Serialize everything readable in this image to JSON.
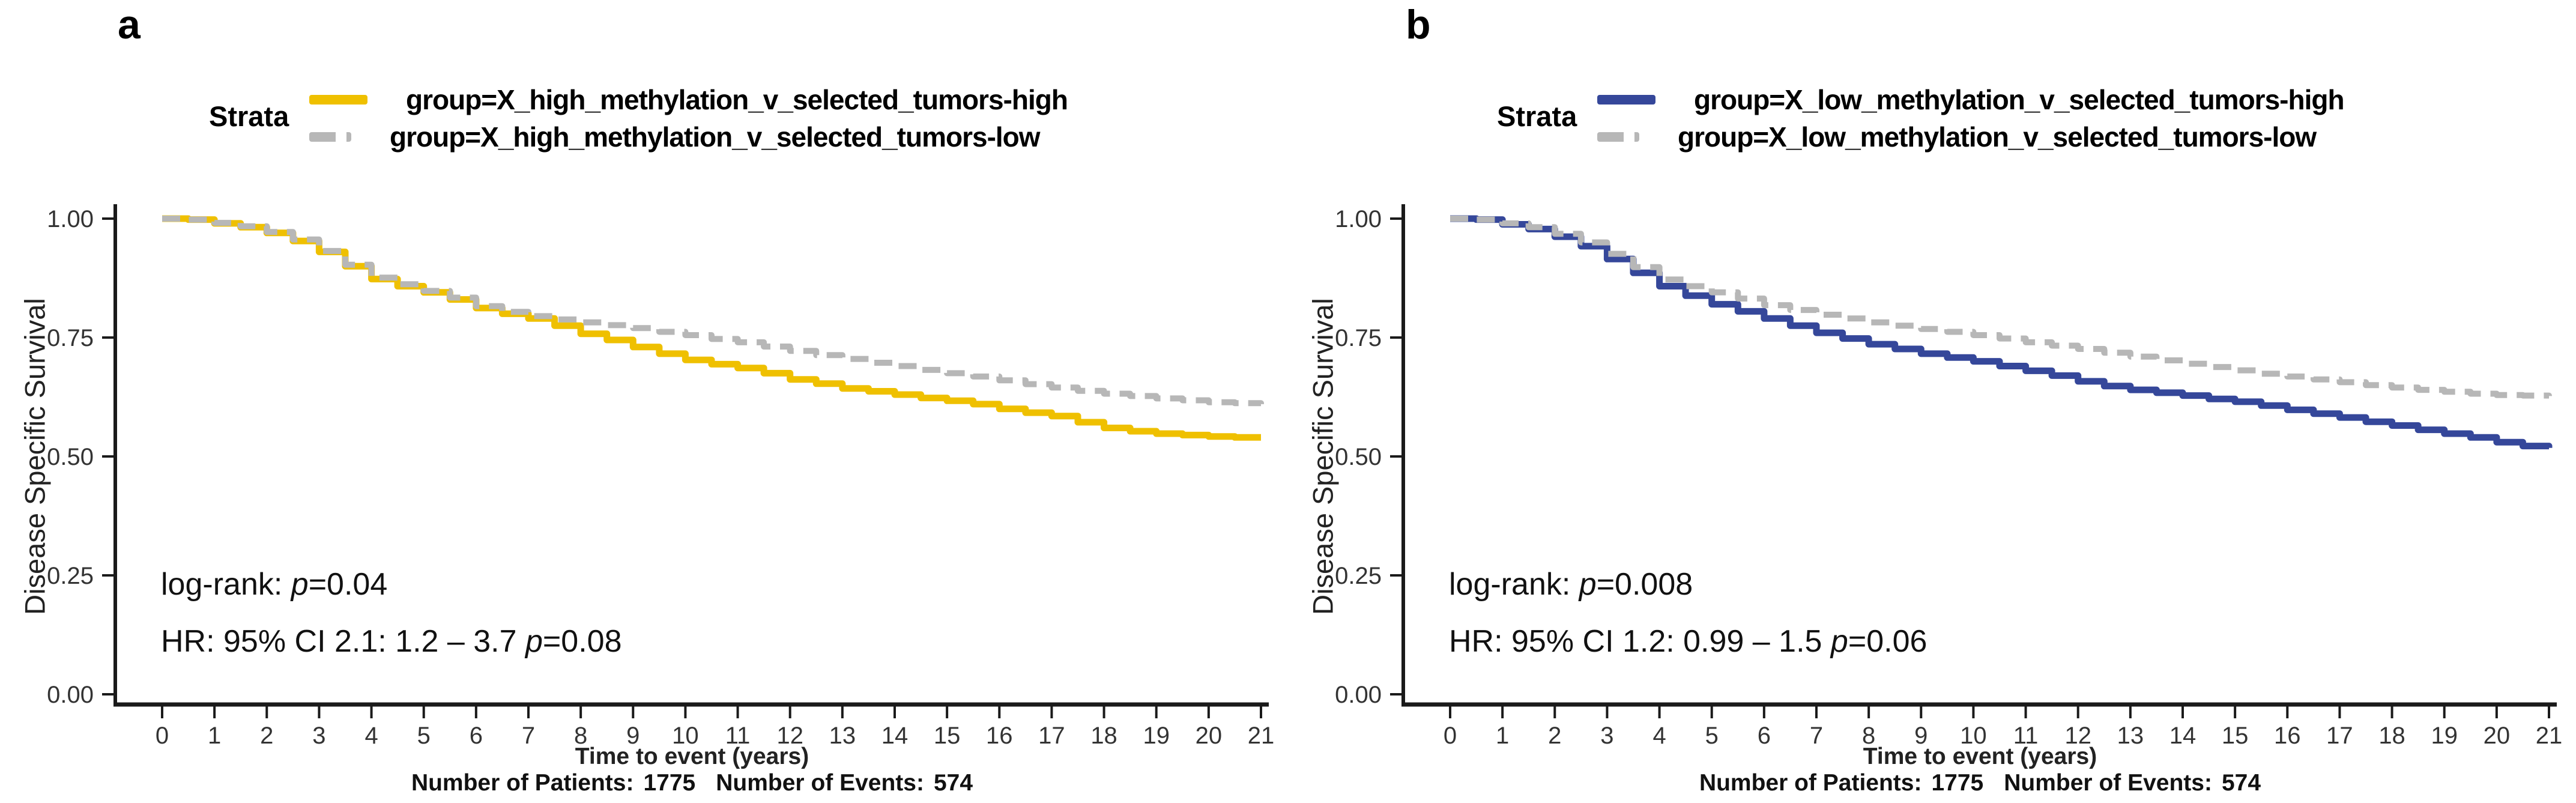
{
  "chart_data": [
    {
      "type": "line",
      "subtype": "kaplan-meier-step",
      "panel_label": "a",
      "legend_title": "Strata",
      "legend_position": "top",
      "ylabel": "Disease Specific Survival",
      "xlabel": "Time to event (years)",
      "xlim": [
        0,
        21
      ],
      "ylim": [
        0,
        1
      ],
      "grid": false,
      "x_ticks": [
        0,
        1,
        2,
        3,
        4,
        5,
        6,
        7,
        8,
        9,
        10,
        11,
        12,
        13,
        14,
        15,
        16,
        17,
        18,
        19,
        20,
        21
      ],
      "y_ticks": [
        {
          "value": 1.0,
          "label": "1.00"
        },
        {
          "value": 0.75,
          "label": "0.75"
        },
        {
          "value": 0.5,
          "label": "0.50"
        },
        {
          "value": 0.25,
          "label": "0.25"
        },
        {
          "value": 0.0,
          "label": "0.00"
        }
      ],
      "series": [
        {
          "name": "group=X_high_methylation_v_selected_tumors-high",
          "color": "#EFC000",
          "style": "solid",
          "points": [
            [
              0,
              1.0
            ],
            [
              0.5,
              0.998
            ],
            [
              1,
              0.99
            ],
            [
              1.5,
              0.982
            ],
            [
              2,
              0.97
            ],
            [
              2.5,
              0.953
            ],
            [
              3,
              0.93
            ],
            [
              3.5,
              0.9
            ],
            [
              4,
              0.873
            ],
            [
              4.5,
              0.858
            ],
            [
              5,
              0.845
            ],
            [
              5.5,
              0.83
            ],
            [
              6,
              0.812
            ],
            [
              6.5,
              0.8
            ],
            [
              7,
              0.79
            ],
            [
              7.5,
              0.775
            ],
            [
              8,
              0.758
            ],
            [
              8.5,
              0.745
            ],
            [
              9,
              0.73
            ],
            [
              9.5,
              0.716
            ],
            [
              10,
              0.703
            ],
            [
              10.5,
              0.694
            ],
            [
              11,
              0.686
            ],
            [
              11.5,
              0.675
            ],
            [
              12,
              0.662
            ],
            [
              12.5,
              0.653
            ],
            [
              13,
              0.643
            ],
            [
              13.5,
              0.637
            ],
            [
              14,
              0.63
            ],
            [
              14.5,
              0.623
            ],
            [
              15,
              0.617
            ],
            [
              15.5,
              0.61
            ],
            [
              16,
              0.6
            ],
            [
              16.5,
              0.592
            ],
            [
              17,
              0.585
            ],
            [
              17.5,
              0.572
            ],
            [
              18,
              0.56
            ],
            [
              18.5,
              0.553
            ],
            [
              19,
              0.548
            ],
            [
              19.5,
              0.545
            ],
            [
              20,
              0.542
            ],
            [
              20.5,
              0.54
            ],
            [
              21,
              0.54
            ]
          ]
        },
        {
          "name": "group=X_high_methylation_v_selected_tumors-low",
          "color": "#B7B7B7",
          "style": "dashed",
          "points": [
            [
              0,
              1.0
            ],
            [
              0.5,
              0.998
            ],
            [
              1,
              0.991
            ],
            [
              1.5,
              0.984
            ],
            [
              2,
              0.972
            ],
            [
              2.5,
              0.956
            ],
            [
              3,
              0.932
            ],
            [
              3.5,
              0.903
            ],
            [
              4,
              0.876
            ],
            [
              4.5,
              0.862
            ],
            [
              5,
              0.848
            ],
            [
              5.5,
              0.834
            ],
            [
              6,
              0.816
            ],
            [
              6.5,
              0.804
            ],
            [
              7,
              0.795
            ],
            [
              7.5,
              0.788
            ],
            [
              8,
              0.782
            ],
            [
              8.5,
              0.776
            ],
            [
              9,
              0.77
            ],
            [
              9.5,
              0.762
            ],
            [
              10,
              0.755
            ],
            [
              10.5,
              0.747
            ],
            [
              11,
              0.74
            ],
            [
              11.5,
              0.731
            ],
            [
              12,
              0.722
            ],
            [
              12.5,
              0.713
            ],
            [
              13,
              0.705
            ],
            [
              13.5,
              0.697
            ],
            [
              14,
              0.69
            ],
            [
              14.5,
              0.682
            ],
            [
              15,
              0.675
            ],
            [
              15.5,
              0.668
            ],
            [
              16,
              0.66
            ],
            [
              16.5,
              0.652
            ],
            [
              17,
              0.645
            ],
            [
              17.5,
              0.638
            ],
            [
              18,
              0.632
            ],
            [
              18.5,
              0.627
            ],
            [
              19,
              0.622
            ],
            [
              19.5,
              0.618
            ],
            [
              20,
              0.614
            ],
            [
              20.5,
              0.612
            ],
            [
              21,
              0.61
            ]
          ]
        }
      ],
      "annotations": {
        "logrank_prefix": "log-rank: ",
        "logrank_p": "p",
        "logrank_value": "=0.04",
        "hr_prefix": "HR: 95% CI 2.1: 1.2 – 3.7 ",
        "hr_p": "p",
        "hr_value": "=0.08"
      },
      "footer": {
        "patients_label": "Number of Patients:",
        "patients_value": "1775",
        "events_label": "Number of Events:",
        "events_value": "574"
      }
    },
    {
      "type": "line",
      "subtype": "kaplan-meier-step",
      "panel_label": "b",
      "legend_title": "Strata",
      "legend_position": "top",
      "ylabel": "Disease Specific Survival",
      "xlabel": "Time to event (years)",
      "xlim": [
        0,
        21
      ],
      "ylim": [
        0,
        1
      ],
      "grid": false,
      "x_ticks": [
        0,
        1,
        2,
        3,
        4,
        5,
        6,
        7,
        8,
        9,
        10,
        11,
        12,
        13,
        14,
        15,
        16,
        17,
        18,
        19,
        20,
        21
      ],
      "y_ticks": [
        {
          "value": 1.0,
          "label": "1.00"
        },
        {
          "value": 0.75,
          "label": "0.75"
        },
        {
          "value": 0.5,
          "label": "0.50"
        },
        {
          "value": 0.25,
          "label": "0.25"
        },
        {
          "value": 0.0,
          "label": "0.00"
        }
      ],
      "series": [
        {
          "name": "group=X_low_methylation_v_selected_tumors-high",
          "color": "#35479A",
          "style": "solid",
          "points": [
            [
              0,
              1.0
            ],
            [
              0.5,
              0.998
            ],
            [
              1,
              0.988
            ],
            [
              1.5,
              0.978
            ],
            [
              2,
              0.962
            ],
            [
              2.5,
              0.942
            ],
            [
              3,
              0.915
            ],
            [
              3.5,
              0.886
            ],
            [
              4,
              0.858
            ],
            [
              4.5,
              0.838
            ],
            [
              5,
              0.82
            ],
            [
              5.5,
              0.805
            ],
            [
              6,
              0.79
            ],
            [
              6.5,
              0.775
            ],
            [
              7,
              0.76
            ],
            [
              7.5,
              0.748
            ],
            [
              8,
              0.736
            ],
            [
              8.5,
              0.726
            ],
            [
              9,
              0.716
            ],
            [
              9.5,
              0.708
            ],
            [
              10,
              0.7
            ],
            [
              10.5,
              0.69
            ],
            [
              11,
              0.68
            ],
            [
              11.5,
              0.67
            ],
            [
              12,
              0.658
            ],
            [
              12.5,
              0.648
            ],
            [
              13,
              0.64
            ],
            [
              13.5,
              0.634
            ],
            [
              14,
              0.628
            ],
            [
              14.5,
              0.621
            ],
            [
              15,
              0.615
            ],
            [
              15.5,
              0.607
            ],
            [
              16,
              0.598
            ],
            [
              16.5,
              0.59
            ],
            [
              17,
              0.582
            ],
            [
              17.5,
              0.573
            ],
            [
              18,
              0.565
            ],
            [
              18.5,
              0.556
            ],
            [
              19,
              0.548
            ],
            [
              19.5,
              0.54
            ],
            [
              20,
              0.53
            ],
            [
              20.5,
              0.522
            ],
            [
              21,
              0.518
            ]
          ]
        },
        {
          "name": "group=X_low_methylation_v_selected_tumors-low",
          "color": "#B7B7B7",
          "style": "dashed",
          "points": [
            [
              0,
              1.0
            ],
            [
              0.5,
              0.998
            ],
            [
              1,
              0.99
            ],
            [
              1.5,
              0.982
            ],
            [
              2,
              0.968
            ],
            [
              2.5,
              0.95
            ],
            [
              3,
              0.926
            ],
            [
              3.5,
              0.898
            ],
            [
              4,
              0.872
            ],
            [
              4.5,
              0.858
            ],
            [
              5,
              0.845
            ],
            [
              5.5,
              0.832
            ],
            [
              6,
              0.818
            ],
            [
              6.5,
              0.808
            ],
            [
              7,
              0.798
            ],
            [
              7.5,
              0.79
            ],
            [
              8,
              0.782
            ],
            [
              8.5,
              0.775
            ],
            [
              9,
              0.768
            ],
            [
              9.5,
              0.762
            ],
            [
              10,
              0.755
            ],
            [
              10.5,
              0.748
            ],
            [
              11,
              0.74
            ],
            [
              11.5,
              0.733
            ],
            [
              12,
              0.726
            ],
            [
              12.5,
              0.718
            ],
            [
              13,
              0.71
            ],
            [
              13.5,
              0.702
            ],
            [
              14,
              0.695
            ],
            [
              14.5,
              0.688
            ],
            [
              15,
              0.681
            ],
            [
              15.5,
              0.674
            ],
            [
              16,
              0.668
            ],
            [
              16.5,
              0.662
            ],
            [
              17,
              0.656
            ],
            [
              17.5,
              0.65
            ],
            [
              18,
              0.645
            ],
            [
              18.5,
              0.64
            ],
            [
              19,
              0.636
            ],
            [
              19.5,
              0.632
            ],
            [
              20,
              0.629
            ],
            [
              20.5,
              0.628
            ],
            [
              21,
              0.627
            ]
          ]
        }
      ],
      "annotations": {
        "logrank_prefix": "log-rank: ",
        "logrank_p": "p",
        "logrank_value": "=0.008",
        "hr_prefix": "HR: 95% CI 1.2: 0.99 – 1.5 ",
        "hr_p": "p",
        "hr_value": "=0.06"
      },
      "footer": {
        "patients_label": "Number of Patients:",
        "patients_value": "1775",
        "events_label": "Number of Events:",
        "events_value": "574"
      }
    }
  ]
}
